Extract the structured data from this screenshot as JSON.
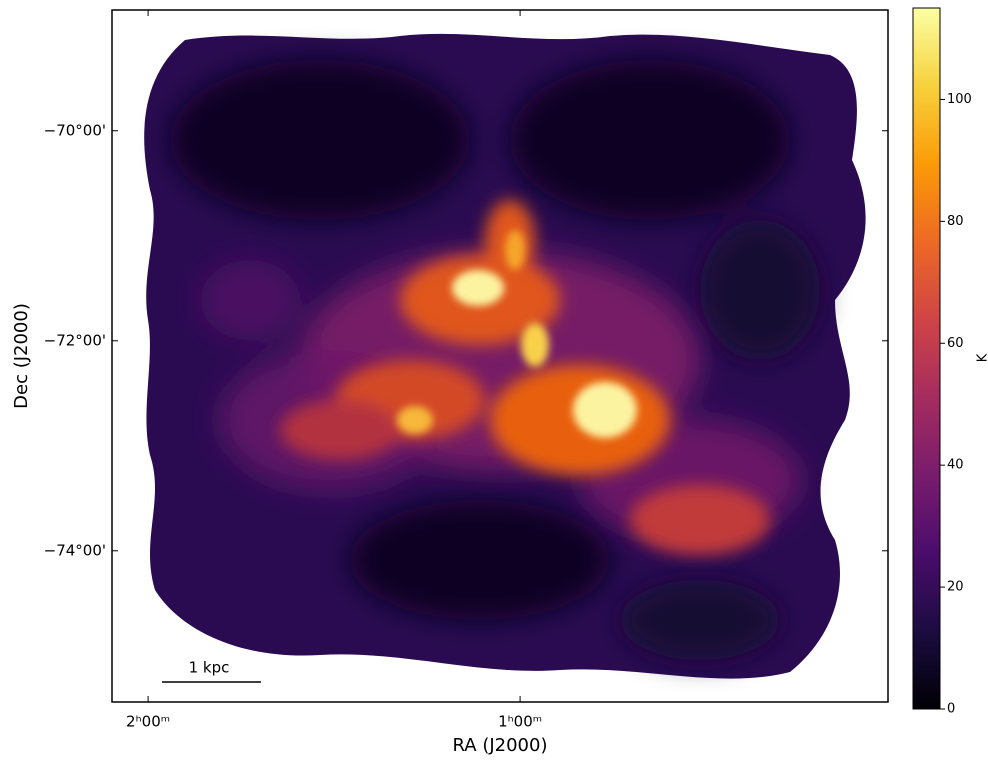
{
  "chart_data": {
    "type": "image",
    "xlabel": "RA (J2000)",
    "ylabel": "Dec (J2000)",
    "xlim": [
      2.097,
      0.011
    ],
    "xticks": [
      {
        "value": 2,
        "label": "2ʰ00ᵐ"
      },
      {
        "value": 1,
        "label": "1ʰ00ᵐ"
      }
    ],
    "ylim": [
      -75.44,
      -68.85
    ],
    "yticks": [
      {
        "value": -70,
        "label": "−70°00'"
      },
      {
        "value": -72,
        "label": "−72°00'"
      },
      {
        "value": -74,
        "label": "−74°00'"
      }
    ],
    "colormap": "inferno",
    "colorbar": {
      "label": "K",
      "lim": [
        0,
        115
      ],
      "ticks": [
        0,
        20,
        40,
        60,
        80,
        100
      ]
    },
    "scalebar": "1 kpc"
  }
}
